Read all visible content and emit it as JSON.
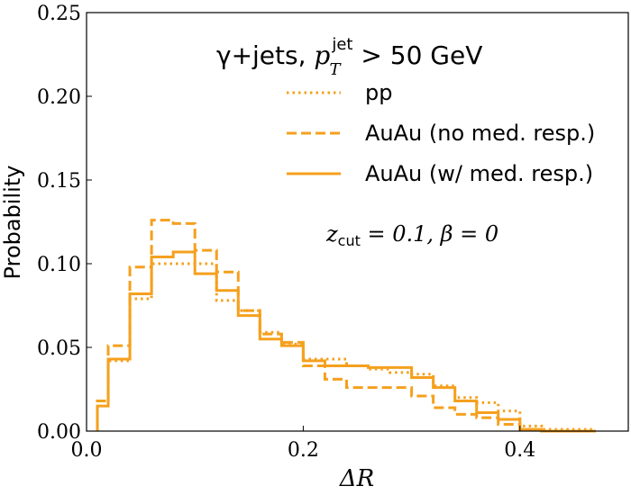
{
  "chart_data": {
    "type": "step",
    "title_parts": {
      "prefix": "γ+jets, ",
      "var": "p",
      "sub": "T",
      "sup": "jet",
      "suffix": " > 50 GeV"
    },
    "annotation": "z",
    "annotation_sub": "cut",
    "annotation_rest": " = 0.1, β = 0",
    "xlabel": "ΔR",
    "ylabel": "Probability",
    "xlim": [
      0.0,
      0.5
    ],
    "ylim": [
      0.0,
      0.25
    ],
    "xticks": [
      0.0,
      0.2,
      0.4
    ],
    "xtick_labels": [
      "0.0",
      "0.2",
      "0.4"
    ],
    "yticks": [
      0.0,
      0.05,
      0.1,
      0.15,
      0.2,
      0.25
    ],
    "ytick_labels": [
      "0.00",
      "0.05",
      "0.10",
      "0.15",
      "0.20",
      "0.25"
    ],
    "legend_position": "top-right",
    "color": "#f5a01e",
    "bin_edges": [
      0.01,
      0.02,
      0.04,
      0.06,
      0.08,
      0.1,
      0.12,
      0.14,
      0.16,
      0.18,
      0.2,
      0.22,
      0.24,
      0.26,
      0.28,
      0.3,
      0.32,
      0.34,
      0.36,
      0.38,
      0.4,
      0.42,
      0.47
    ],
    "series": [
      {
        "name": "pp",
        "style": "dotted",
        "values": [
          0.018,
          0.042,
          0.079,
          0.1,
          0.1,
          0.1,
          0.078,
          0.072,
          0.059,
          0.052,
          0.043,
          0.043,
          0.039,
          0.037,
          0.035,
          0.034,
          0.027,
          0.02,
          0.017,
          0.012,
          0.003,
          0.001
        ]
      },
      {
        "name": "AuAu (no med. resp.)",
        "style": "dashed",
        "values": [
          0.018,
          0.051,
          0.098,
          0.126,
          0.124,
          0.108,
          0.095,
          0.072,
          0.058,
          0.053,
          0.039,
          0.031,
          0.026,
          0.026,
          0.026,
          0.021,
          0.014,
          0.01,
          0.008,
          0.004,
          0.001,
          0.0
        ]
      },
      {
        "name": "AuAu (w/ med. resp.)",
        "style": "solid",
        "values": [
          0.015,
          0.043,
          0.082,
          0.104,
          0.107,
          0.094,
          0.084,
          0.069,
          0.055,
          0.051,
          0.042,
          0.039,
          0.039,
          0.038,
          0.038,
          0.032,
          0.026,
          0.018,
          0.011,
          0.007,
          0.001,
          0.0
        ]
      }
    ]
  }
}
